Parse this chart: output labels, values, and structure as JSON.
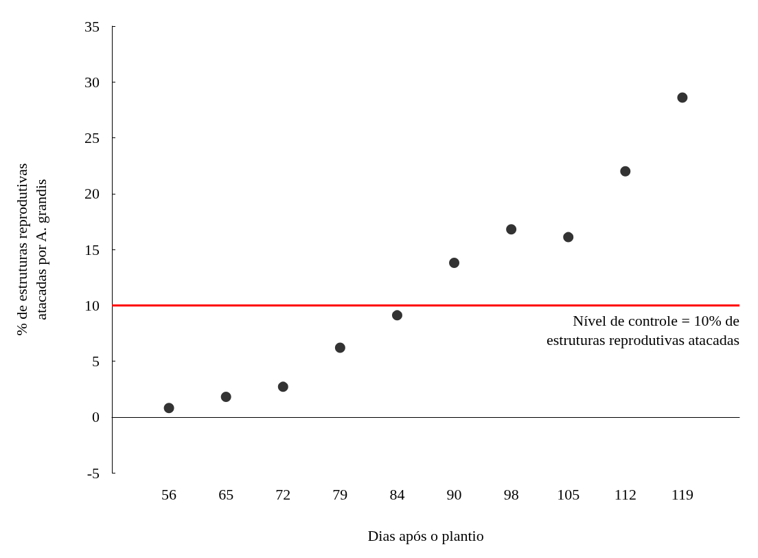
{
  "chart_data": {
    "type": "scatter",
    "xlabel": "Dias após o plantio",
    "ylabel": "% de estruturas reprodutivas\natacadas por A. grandis",
    "categories": [
      null,
      "56",
      "65",
      "72",
      "79",
      "84",
      "90",
      "98",
      "105",
      "112",
      "119",
      null
    ],
    "values": [
      null,
      0.8,
      1.8,
      2.7,
      6.2,
      9.1,
      13.8,
      16.8,
      16.1,
      22.0,
      28.6,
      null
    ],
    "color": "#000000",
    "marker": "circle",
    "ylim": [
      -5,
      35
    ],
    "yticks": [
      -5,
      0,
      5,
      10,
      15,
      20,
      25,
      30,
      35
    ],
    "grid": false,
    "ref_lines": [
      {
        "axis": "y",
        "value": 10,
        "label": "Nível de controle = 10% de\nestruturas reprodutivas atacadas",
        "color": "#ff0000"
      }
    ]
  }
}
